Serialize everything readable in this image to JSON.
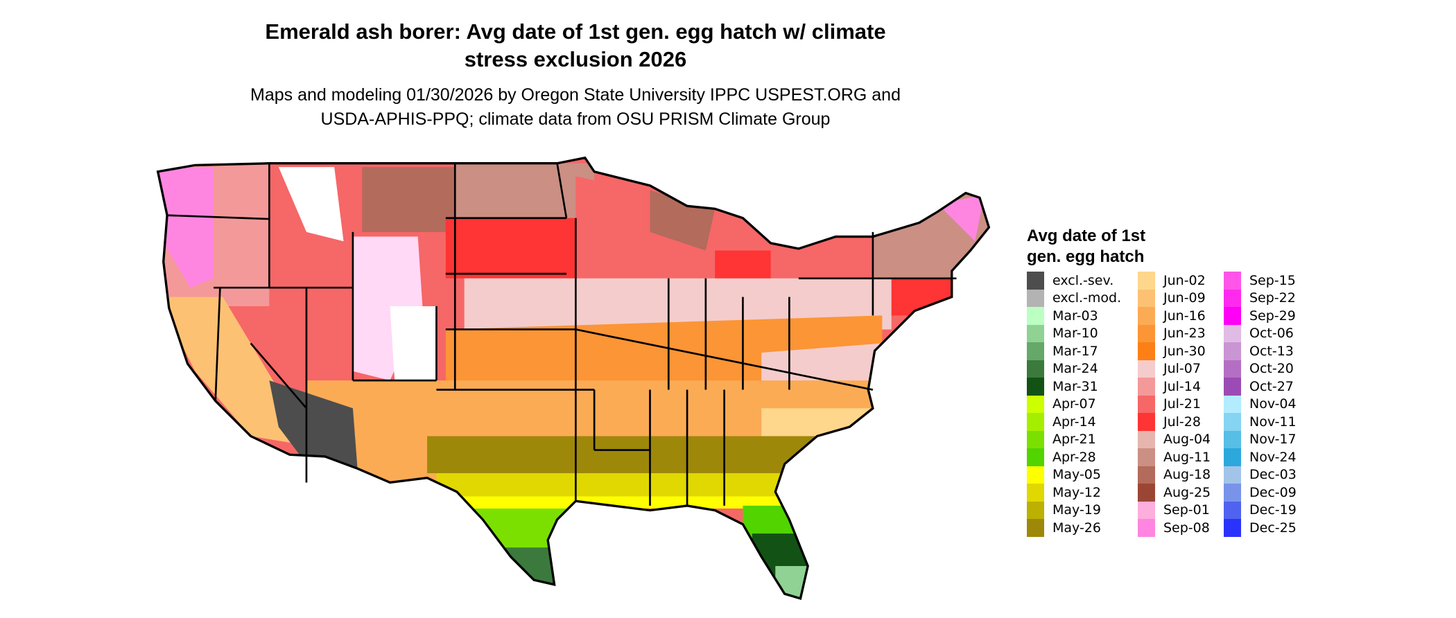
{
  "title": {
    "line1": "Emerald ash borer: Avg date of 1st gen. egg hatch w/ climate",
    "line2": "stress exclusion 2026"
  },
  "subtitle": {
    "line1": "Maps and modeling 01/30/2026 by Oregon State University IPPC USPEST.ORG and",
    "line2": "USDA-APHIS-PPQ; climate data from OSU PRISM Climate Group"
  },
  "legend": {
    "title_line1": "Avg date of 1st",
    "title_line2": "gen. egg hatch",
    "columns": [
      [
        {
          "label": "excl.-sev.",
          "color": "#4d4d4d"
        },
        {
          "label": "excl.-mod.",
          "color": "#b3b3b3"
        },
        {
          "label": "Mar-03",
          "color": "#bbffc3"
        },
        {
          "label": "Mar-10",
          "color": "#8fd294"
        },
        {
          "label": "Mar-17",
          "color": "#65a86a"
        },
        {
          "label": "Mar-24",
          "color": "#3b7a3c"
        },
        {
          "label": "Mar-31",
          "color": "#135215"
        },
        {
          "label": "Apr-07",
          "color": "#ccff00"
        },
        {
          "label": "Apr-14",
          "color": "#a6ee00"
        },
        {
          "label": "Apr-21",
          "color": "#7be000"
        },
        {
          "label": "Apr-28",
          "color": "#52d400"
        },
        {
          "label": "May-05",
          "color": "#ffff00"
        },
        {
          "label": "May-12",
          "color": "#e0d800"
        },
        {
          "label": "May-19",
          "color": "#bcb000"
        },
        {
          "label": "May-26",
          "color": "#9e880a"
        }
      ],
      [
        {
          "label": "Jun-02",
          "color": "#fed68c"
        },
        {
          "label": "Jun-09",
          "color": "#fdc173"
        },
        {
          "label": "Jun-16",
          "color": "#fcab55"
        },
        {
          "label": "Jun-23",
          "color": "#fc9535"
        },
        {
          "label": "Jun-30",
          "color": "#fc8016"
        },
        {
          "label": "Jul-07",
          "color": "#f4cccc"
        },
        {
          "label": "Jul-14",
          "color": "#f49999"
        },
        {
          "label": "Jul-21",
          "color": "#f66767"
        },
        {
          "label": "Jul-28",
          "color": "#ff3434"
        },
        {
          "label": "Aug-04",
          "color": "#e6b6ae"
        },
        {
          "label": "Aug-11",
          "color": "#cb8f84"
        },
        {
          "label": "Aug-18",
          "color": "#b36b5c"
        },
        {
          "label": "Aug-25",
          "color": "#9b4634"
        },
        {
          "label": "Sep-01",
          "color": "#fdaedc"
        },
        {
          "label": "Sep-08",
          "color": "#fe86e0"
        }
      ],
      [
        {
          "label": "Sep-15",
          "color": "#ff55e8"
        },
        {
          "label": "Sep-22",
          "color": "#ff2aee"
        },
        {
          "label": "Sep-29",
          "color": "#ff00f6"
        },
        {
          "label": "Oct-06",
          "color": "#e0bce4"
        },
        {
          "label": "Oct-13",
          "color": "#c995d2"
        },
        {
          "label": "Oct-20",
          "color": "#b46fc4"
        },
        {
          "label": "Oct-27",
          "color": "#9c4bb5"
        },
        {
          "label": "Nov-04",
          "color": "#b3ecfe"
        },
        {
          "label": "Nov-11",
          "color": "#85d4f1"
        },
        {
          "label": "Nov-17",
          "color": "#57bee6"
        },
        {
          "label": "Nov-24",
          "color": "#2ca8dc"
        },
        {
          "label": "Dec-03",
          "color": "#a1c4e8"
        },
        {
          "label": "Dec-09",
          "color": "#7993eb"
        },
        {
          "label": "Dec-19",
          "color": "#5062f0"
        },
        {
          "label": "Dec-25",
          "color": "#2a33fb"
        }
      ]
    ]
  }
}
